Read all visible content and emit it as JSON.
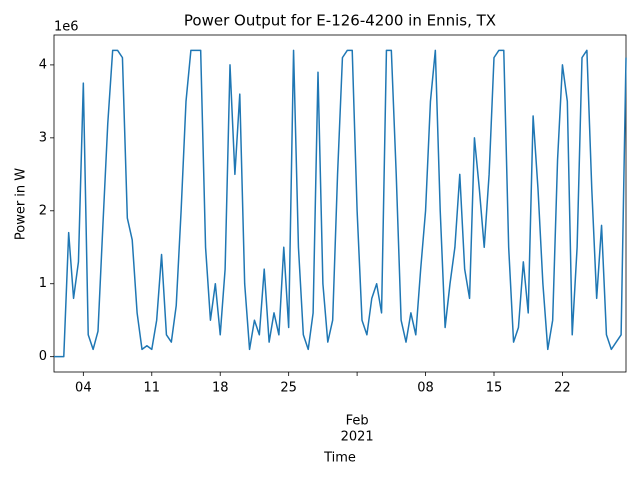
{
  "chart_data": {
    "type": "line",
    "title": "Power Output for E-126-4200 in Ennis, TX",
    "x_label": "Time",
    "y_label": "Power in W",
    "y_offset_label": "1e6",
    "color": "#1f77b4",
    "x": [
      "2021-01-01T00:00",
      "2021-01-01T12:00",
      "2021-01-02T00:00",
      "2021-01-02T12:00",
      "2021-01-03T00:00",
      "2021-01-03T12:00",
      "2021-01-04T00:00",
      "2021-01-04T12:00",
      "2021-01-05T00:00",
      "2021-01-05T12:00",
      "2021-01-06T00:00",
      "2021-01-06T12:00",
      "2021-01-07T00:00",
      "2021-01-07T12:00",
      "2021-01-08T00:00",
      "2021-01-08T12:00",
      "2021-01-09T00:00",
      "2021-01-09T12:00",
      "2021-01-10T00:00",
      "2021-01-10T12:00",
      "2021-01-11T00:00",
      "2021-01-11T12:00",
      "2021-01-12T00:00",
      "2021-01-12T12:00",
      "2021-01-13T00:00",
      "2021-01-13T12:00",
      "2021-01-14T00:00",
      "2021-01-14T12:00",
      "2021-01-15T00:00",
      "2021-01-15T12:00",
      "2021-01-16T00:00",
      "2021-01-16T12:00",
      "2021-01-17T00:00",
      "2021-01-17T12:00",
      "2021-01-18T00:00",
      "2021-01-18T12:00",
      "2021-01-19T00:00",
      "2021-01-19T12:00",
      "2021-01-20T00:00",
      "2021-01-20T12:00",
      "2021-01-21T00:00",
      "2021-01-21T12:00",
      "2021-01-22T00:00",
      "2021-01-22T12:00",
      "2021-01-23T00:00",
      "2021-01-23T12:00",
      "2021-01-24T00:00",
      "2021-01-24T12:00",
      "2021-01-25T00:00",
      "2021-01-25T12:00",
      "2021-01-26T00:00",
      "2021-01-26T12:00",
      "2021-01-27T00:00",
      "2021-01-27T12:00",
      "2021-01-28T00:00",
      "2021-01-28T12:00",
      "2021-01-29T00:00",
      "2021-01-29T12:00",
      "2021-01-30T00:00",
      "2021-01-30T12:00",
      "2021-01-31T00:00",
      "2021-01-31T12:00",
      "2021-02-01T00:00",
      "2021-02-01T12:00",
      "2021-02-02T00:00",
      "2021-02-02T12:00",
      "2021-02-03T00:00",
      "2021-02-03T12:00",
      "2021-02-04T00:00",
      "2021-02-04T12:00",
      "2021-02-05T00:00",
      "2021-02-05T12:00",
      "2021-02-06T00:00",
      "2021-02-06T12:00",
      "2021-02-07T00:00",
      "2021-02-07T12:00",
      "2021-02-08T00:00",
      "2021-02-08T12:00",
      "2021-02-09T00:00",
      "2021-02-09T12:00",
      "2021-02-10T00:00",
      "2021-02-10T12:00",
      "2021-02-11T00:00",
      "2021-02-11T12:00",
      "2021-02-12T00:00",
      "2021-02-12T12:00",
      "2021-02-13T00:00",
      "2021-02-13T12:00",
      "2021-02-14T00:00",
      "2021-02-14T12:00",
      "2021-02-15T00:00",
      "2021-02-15T12:00",
      "2021-02-16T00:00",
      "2021-02-16T12:00",
      "2021-02-17T00:00",
      "2021-02-17T12:00",
      "2021-02-18T00:00",
      "2021-02-18T12:00",
      "2021-02-19T00:00",
      "2021-02-19T12:00",
      "2021-02-20T00:00",
      "2021-02-20T12:00",
      "2021-02-21T00:00",
      "2021-02-21T12:00",
      "2021-02-22T00:00",
      "2021-02-22T12:00",
      "2021-02-23T00:00",
      "2021-02-23T12:00",
      "2021-02-24T00:00",
      "2021-02-24T12:00",
      "2021-02-25T00:00",
      "2021-02-25T12:00",
      "2021-02-26T00:00",
      "2021-02-26T12:00",
      "2021-02-27T00:00",
      "2021-02-27T12:00",
      "2021-02-28T00:00",
      "2021-02-28T12:00"
    ],
    "values": [
      0,
      0,
      0,
      1700000,
      800000,
      1300000,
      3750000,
      300000,
      100000,
      350000,
      1800000,
      3200000,
      4200000,
      4200000,
      4100000,
      1900000,
      1600000,
      600000,
      100000,
      150000,
      100000,
      500000,
      1400000,
      300000,
      200000,
      700000,
      2000000,
      3500000,
      4200000,
      4200000,
      4200000,
      1500000,
      500000,
      1000000,
      300000,
      1200000,
      4000000,
      2500000,
      3600000,
      1000000,
      100000,
      500000,
      300000,
      1200000,
      200000,
      600000,
      300000,
      1500000,
      400000,
      4200000,
      1500000,
      300000,
      100000,
      600000,
      3900000,
      1000000,
      200000,
      500000,
      2500000,
      4100000,
      4200000,
      4200000,
      2000000,
      500000,
      300000,
      800000,
      1000000,
      600000,
      4200000,
      4200000,
      2500000,
      500000,
      200000,
      600000,
      300000,
      1200000,
      2000000,
      3500000,
      4200000,
      2000000,
      400000,
      1000000,
      1500000,
      2500000,
      1200000,
      800000,
      3000000,
      2300000,
      1500000,
      2500000,
      4100000,
      4200000,
      4200000,
      1500000,
      200000,
      400000,
      1300000,
      600000,
      3300000,
      2300000,
      1000000,
      100000,
      500000,
      2700000,
      4000000,
      3500000,
      300000,
      1500000,
      4100000,
      4200000,
      2300000,
      800000,
      1800000,
      300000,
      100000,
      200000,
      300000,
      4100000
    ],
    "xlim": [
      "2021-01-01T00:00",
      "2021-02-28T12:00"
    ],
    "xticks": [
      {
        "value": "2021-01-04T00:00",
        "label": "04"
      },
      {
        "value": "2021-01-11T00:00",
        "label": "11"
      },
      {
        "value": "2021-01-18T00:00",
        "label": "18"
      },
      {
        "value": "2021-01-25T00:00",
        "label": "25"
      },
      {
        "value": "2021-02-01T00:00",
        "label": "Feb"
      },
      {
        "value": "2021-02-08T00:00",
        "label": "08"
      },
      {
        "value": "2021-02-15T00:00",
        "label": "15"
      },
      {
        "value": "2021-02-22T00:00",
        "label": "22"
      }
    ],
    "x_tick_year": "2021",
    "ylim": [
      -210000,
      4410000
    ],
    "yticks": [
      {
        "value": 0,
        "label": "0"
      },
      {
        "value": 1000000,
        "label": "1"
      },
      {
        "value": 2000000,
        "label": "2"
      },
      {
        "value": 3000000,
        "label": "3"
      },
      {
        "value": 4000000,
        "label": "4"
      }
    ],
    "grid": false
  }
}
